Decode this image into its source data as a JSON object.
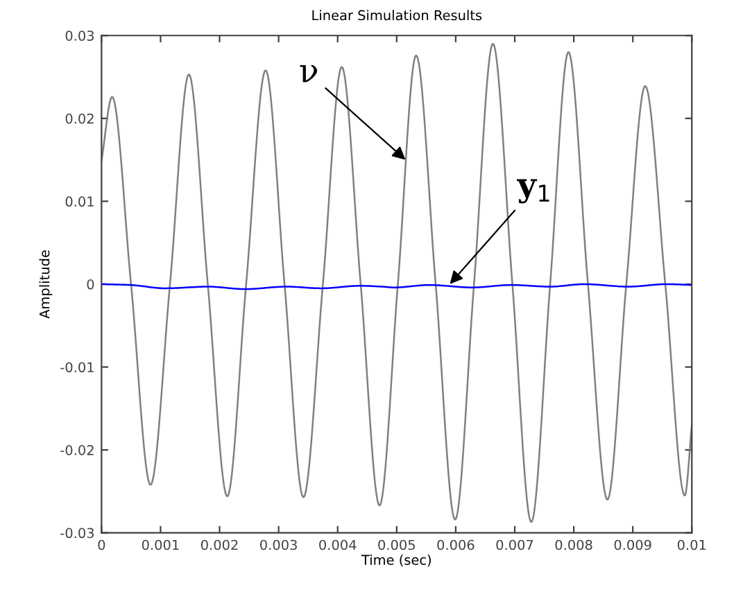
{
  "chart_data": {
    "type": "line",
    "title": "Linear Simulation Results",
    "xlabel": "Time (sec)",
    "ylabel": "Amplitude",
    "xlim": [
      0,
      0.01
    ],
    "ylim": [
      -0.03,
      0.03
    ],
    "xticks": [
      0,
      0.001,
      0.002,
      0.003,
      0.004,
      0.005,
      0.006,
      0.007,
      0.008,
      0.009,
      0.01
    ],
    "yticks": [
      -0.03,
      -0.02,
      -0.01,
      0,
      0.01,
      0.02,
      0.03
    ],
    "grid": false,
    "legend": false,
    "marker": "none",
    "line_style": "solid",
    "series": [
      {
        "color": "#808080",
        "x": [
          0,
          0.00018,
          0.0005,
          0.00083,
          0.00116,
          0.00148,
          0.0018,
          0.00213,
          0.00245,
          0.00278,
          0.0031,
          0.00342,
          0.00375,
          0.00407,
          0.00439,
          0.00471,
          0.00502,
          0.00533,
          0.00566,
          0.00599,
          0.00631,
          0.00663,
          0.00696,
          0.00728,
          0.0076,
          0.00791,
          0.00824,
          0.00857,
          0.00889,
          0.00921,
          0.00955,
          0.00988,
          0.01
        ],
        "values": [
          0.0149,
          0.0226,
          0,
          -0.0242,
          0,
          0.0253,
          0,
          -0.0256,
          0,
          0.0258,
          0,
          -0.0257,
          0,
          0.0262,
          0,
          -0.0267,
          0,
          0.0276,
          0,
          -0.0284,
          0,
          0.029,
          0,
          -0.0287,
          0,
          0.028,
          0,
          -0.026,
          0,
          0.0239,
          0,
          -0.0255,
          -0.017
        ]
      },
      {
        "color": "#0000ff",
        "x": [
          0,
          0.00049,
          0.00107,
          0.00181,
          0.00243,
          0.00313,
          0.00372,
          0.00438,
          0.00475,
          0.00496,
          0.00555,
          0.00628,
          0.00694,
          0.0076,
          0.00818,
          0.00892,
          0.00958,
          0.01
        ],
        "values": [
          0,
          -0.0001,
          -0.0005,
          -0.0003,
          -0.0006,
          -0.0003,
          -0.0005,
          -0.0002,
          -0.0003,
          -0.0004,
          -0.0001,
          -0.0004,
          -0.0001,
          -0.0003,
          0,
          -0.0003,
          0,
          -0.0001
        ]
      }
    ],
    "annotations": [
      {
        "text": "ν",
        "x": 0.00515,
        "y": 0.015
      },
      {
        "text": "y$_{1}$",
        "x": 0.0059,
        "y": 0
      }
    ]
  }
}
